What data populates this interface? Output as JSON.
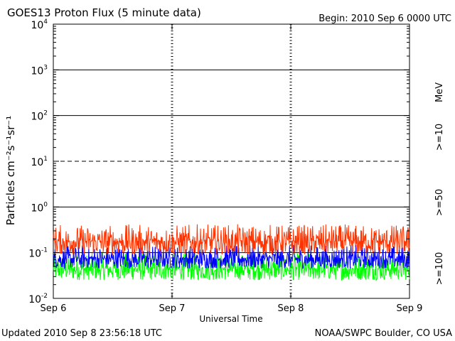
{
  "header": {
    "title": "GOES13 Proton Flux (5 minute data)",
    "begin": "Begin:  2010 Sep 6  0000 UTC"
  },
  "footer": {
    "updated": "Updated 2010 Sep  8 23:56:18 UTC",
    "credit": "NOAA/SWPC Boulder, CO USA"
  },
  "chart_data": {
    "type": "line",
    "title": "GOES13 Proton Flux (5 minute data)",
    "xlabel": "Universal Time",
    "ylabel": "Particles cm⁻²s⁻¹sr⁻¹",
    "y_scale": "log",
    "ylim": [
      0.01,
      10000
    ],
    "y_ticks": [
      {
        "base": "10",
        "exp": "-2"
      },
      {
        "base": "10",
        "exp": "-1"
      },
      {
        "base": "10",
        "exp": "0"
      },
      {
        "base": "10",
        "exp": "1"
      },
      {
        "base": "10",
        "exp": "2"
      },
      {
        "base": "10",
        "exp": "3"
      },
      {
        "base": "10",
        "exp": "4"
      }
    ],
    "x_ticks": [
      "Sep 6",
      "Sep 7",
      "Sep 8",
      "Sep 9"
    ],
    "x_range_days": [
      6,
      9
    ],
    "unit_label": "MeV",
    "grid": "horizontal lines at 10^0, 10^2, 10^3 solid; 10^1 dashed; dotted verticals at day boundaries",
    "series": [
      {
        "name": ">=10",
        "color": "#ff3300",
        "typical": 0.18,
        "min": 0.09,
        "max": 0.42
      },
      {
        "name": ">=50",
        "color": "#0000ff",
        "typical": 0.075,
        "min": 0.045,
        "max": 0.15
      },
      {
        "name": ">=100",
        "color": "#00ff00",
        "typical": 0.045,
        "min": 0.025,
        "max": 0.1
      }
    ]
  }
}
